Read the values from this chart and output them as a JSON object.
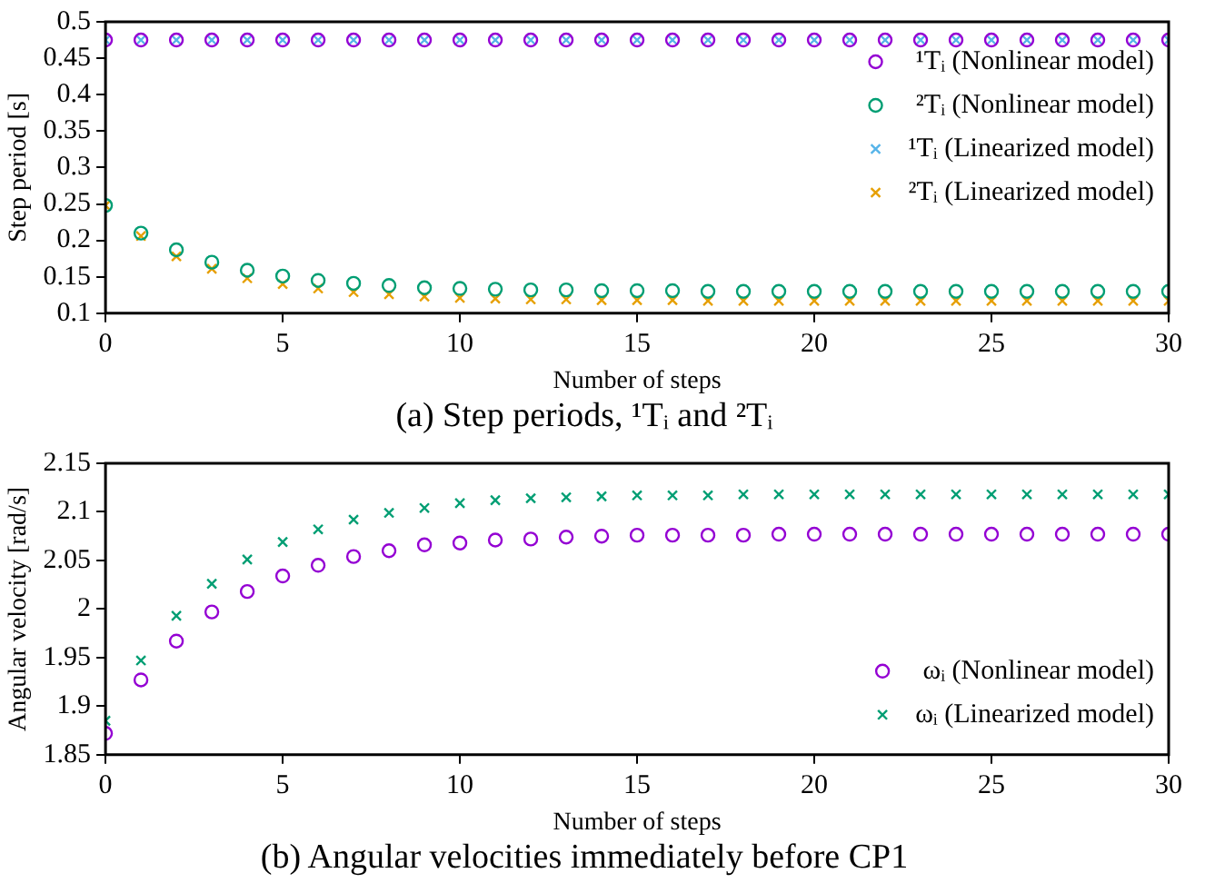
{
  "chart_data": [
    {
      "type": "scatter",
      "title": "(a) Step periods, ¹Tᵢ and ²Tᵢ",
      "xlabel": "Number of steps",
      "ylabel": "Step period [s]",
      "x": [
        0,
        1,
        2,
        3,
        4,
        5,
        6,
        7,
        8,
        9,
        10,
        11,
        12,
        13,
        14,
        15,
        16,
        17,
        18,
        19,
        20,
        21,
        22,
        23,
        24,
        25,
        26,
        27,
        28,
        29,
        30
      ],
      "xlim": [
        0,
        30
      ],
      "xticks": [
        0,
        5,
        10,
        15,
        20,
        25,
        30
      ],
      "ylim": [
        0.1,
        0.5
      ],
      "yticks": [
        0.1,
        0.15,
        0.2,
        0.25,
        0.3,
        0.35,
        0.4,
        0.45,
        0.5
      ],
      "grid": false,
      "legend": "top right",
      "series": [
        {
          "name": "¹Tᵢ (Nonlinear model)",
          "color": "#9400d3",
          "marker": "circle",
          "values": [
            0.475,
            0.475,
            0.475,
            0.475,
            0.475,
            0.475,
            0.475,
            0.475,
            0.475,
            0.475,
            0.475,
            0.475,
            0.475,
            0.475,
            0.475,
            0.475,
            0.475,
            0.475,
            0.475,
            0.475,
            0.475,
            0.475,
            0.475,
            0.475,
            0.475,
            0.475,
            0.475,
            0.475,
            0.475,
            0.475,
            0.475
          ]
        },
        {
          "name": "²Tᵢ (Nonlinear model)",
          "color": "#009e73",
          "marker": "circle",
          "values": [
            0.248,
            0.21,
            0.187,
            0.17,
            0.159,
            0.151,
            0.145,
            0.141,
            0.138,
            0.135,
            0.134,
            0.133,
            0.132,
            0.132,
            0.131,
            0.131,
            0.131,
            0.13,
            0.13,
            0.13,
            0.13,
            0.13,
            0.13,
            0.13,
            0.13,
            0.13,
            0.13,
            0.13,
            0.13,
            0.13,
            0.13
          ]
        },
        {
          "name": "¹Tᵢ (Linearized model)",
          "color": "#56b4e9",
          "marker": "cross",
          "values": [
            0.475,
            0.475,
            0.475,
            0.475,
            0.475,
            0.475,
            0.475,
            0.475,
            0.475,
            0.475,
            0.475,
            0.475,
            0.475,
            0.475,
            0.475,
            0.475,
            0.475,
            0.475,
            0.475,
            0.475,
            0.475,
            0.475,
            0.475,
            0.475,
            0.475,
            0.475,
            0.475,
            0.475,
            0.475,
            0.475,
            0.475
          ]
        },
        {
          "name": "²Tᵢ (Linearized model)",
          "color": "#e69f00",
          "marker": "cross",
          "values": [
            0.248,
            0.206,
            0.178,
            0.161,
            0.148,
            0.14,
            0.134,
            0.129,
            0.126,
            0.123,
            0.121,
            0.12,
            0.119,
            0.119,
            0.118,
            0.118,
            0.118,
            0.117,
            0.117,
            0.117,
            0.117,
            0.117,
            0.117,
            0.117,
            0.117,
            0.117,
            0.117,
            0.117,
            0.117,
            0.117,
            0.117
          ]
        }
      ]
    },
    {
      "type": "scatter",
      "title": "(b) Angular velocities immediately before CP1",
      "xlabel": "Number of steps",
      "ylabel": "Angular velocity [rad/s]",
      "x": [
        0,
        1,
        2,
        3,
        4,
        5,
        6,
        7,
        8,
        9,
        10,
        11,
        12,
        13,
        14,
        15,
        16,
        17,
        18,
        19,
        20,
        21,
        22,
        23,
        24,
        25,
        26,
        27,
        28,
        29,
        30
      ],
      "xlim": [
        0,
        30
      ],
      "xticks": [
        0,
        5,
        10,
        15,
        20,
        25,
        30
      ],
      "ylim": [
        1.85,
        2.15
      ],
      "yticks": [
        1.85,
        1.9,
        1.95,
        2,
        2.05,
        2.1,
        2.15
      ],
      "grid": false,
      "legend": "bottom right",
      "series": [
        {
          "name": "ωᵢ (Nonlinear model)",
          "color": "#9400d3",
          "marker": "circle",
          "values": [
            1.872,
            1.927,
            1.967,
            1.997,
            2.018,
            2.034,
            2.045,
            2.054,
            2.06,
            2.066,
            2.068,
            2.071,
            2.072,
            2.074,
            2.075,
            2.076,
            2.076,
            2.076,
            2.076,
            2.077,
            2.077,
            2.077,
            2.077,
            2.077,
            2.077,
            2.077,
            2.077,
            2.077,
            2.077,
            2.077,
            2.077
          ]
        },
        {
          "name": "ωᵢ (Linearized model)",
          "color": "#009e73",
          "marker": "cross",
          "values": [
            1.885,
            1.947,
            1.993,
            2.026,
            2.051,
            2.069,
            2.082,
            2.092,
            2.099,
            2.104,
            2.109,
            2.112,
            2.114,
            2.115,
            2.116,
            2.117,
            2.117,
            2.117,
            2.118,
            2.118,
            2.118,
            2.118,
            2.118,
            2.118,
            2.118,
            2.118,
            2.118,
            2.118,
            2.118,
            2.118,
            2.118
          ]
        }
      ]
    }
  ]
}
